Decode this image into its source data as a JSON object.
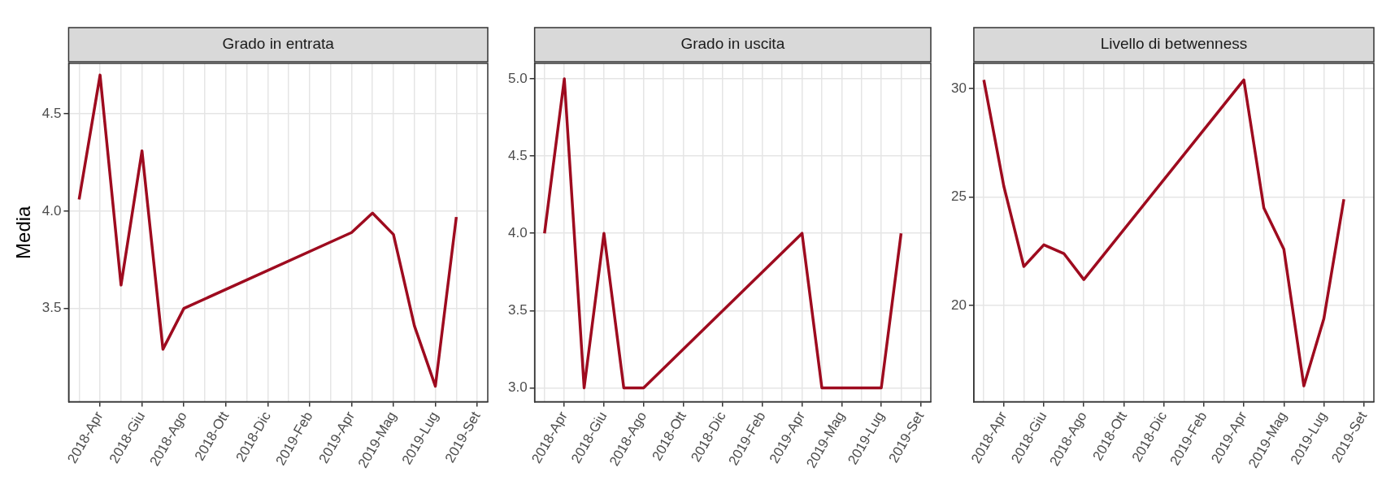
{
  "chart_data": [
    {
      "type": "line",
      "title": "Grado in entrata",
      "ylabel": "Media",
      "color": "#9e0b1f",
      "grid": true,
      "categories": [
        null,
        "2018-Apr",
        null,
        "2018-Giu",
        null,
        "2018-Ago",
        null,
        "2018-Ott",
        null,
        "2018-Dic",
        null,
        "2019-Feb",
        null,
        "2019-Apr",
        null,
        "2019-Mag",
        null,
        "2019-Lug",
        null,
        "2019-Set"
      ],
      "values": [
        4.06,
        4.7,
        3.62,
        4.31,
        3.29,
        3.5,
        null,
        null,
        null,
        null,
        null,
        null,
        null,
        3.89,
        3.99,
        3.88,
        3.41,
        3.1,
        3.97,
        null
      ],
      "ylim": [
        3.02,
        4.76
      ],
      "yticks": [
        {
          "value": 3.5,
          "label": "3.5"
        },
        {
          "value": 4,
          "label": "4.0"
        },
        {
          "value": 4.5,
          "label": "4.5"
        }
      ]
    },
    {
      "type": "line",
      "title": "Grado in uscita",
      "color": "#9e0b1f",
      "grid": true,
      "categories": [
        null,
        "2018-Apr",
        null,
        "2018-Giu",
        null,
        "2018-Ago",
        null,
        "2018-Ott",
        null,
        "2018-Dic",
        null,
        "2019-Feb",
        null,
        "2019-Apr",
        null,
        "2019-Mag",
        null,
        "2019-Lug",
        null,
        "2019-Set"
      ],
      "values": [
        4,
        5,
        3,
        4,
        3,
        3,
        null,
        null,
        null,
        null,
        null,
        null,
        null,
        4,
        3,
        3,
        3,
        3,
        4,
        null
      ],
      "ylim": [
        2.91,
        5.1
      ],
      "yticks": [
        {
          "value": 3,
          "label": "3.0"
        },
        {
          "value": 3.5,
          "label": "3.5"
        },
        {
          "value": 4,
          "label": "4.0"
        },
        {
          "value": 4.5,
          "label": "4.5"
        },
        {
          "value": 5,
          "label": "5.0"
        }
      ]
    },
    {
      "type": "line",
      "title": "Livello di betwenness",
      "color": "#9e0b1f",
      "grid": true,
      "categories": [
        null,
        "2018-Apr",
        null,
        "2018-Giu",
        null,
        "2018-Ago",
        null,
        "2018-Ott",
        null,
        "2018-Dic",
        null,
        "2019-Feb",
        null,
        "2019-Apr",
        null,
        "2019-Mag",
        null,
        "2019-Lug",
        null,
        "2019-Set"
      ],
      "values": [
        30.4,
        25.5,
        21.8,
        22.8,
        22.4,
        21.2,
        null,
        null,
        null,
        null,
        null,
        null,
        null,
        30.4,
        24.5,
        22.6,
        16.3,
        19.4,
        24.9,
        null
      ],
      "ylim": [
        15.57,
        31.16
      ],
      "yticks": [
        20,
        25,
        30
      ]
    }
  ]
}
